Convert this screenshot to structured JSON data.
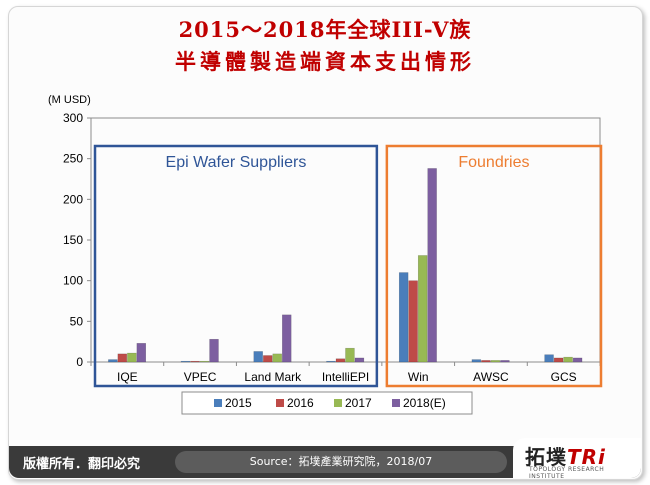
{
  "title": {
    "line1": "2015～2018年全球III-V族",
    "line2": "半導體製造端資本支出情形"
  },
  "footer": {
    "left_text": "版權所有．翻印必究",
    "source": "Source：拓墣產業研究院，2018/07",
    "logo_text": "拓墣",
    "logo_tri": "TRi",
    "logo_sub": "TOPOLOGY RESEARCH INSTITUTE"
  },
  "chart_data": {
    "type": "bar",
    "ylabel": "(M USD)",
    "ylim": [
      0,
      300
    ],
    "yticks": [
      0,
      50,
      100,
      150,
      200,
      250,
      300
    ],
    "categories": [
      "IQE",
      "VPEC",
      "Land Mark",
      "IntelliEPI",
      "Win",
      "AWSC",
      "GCS"
    ],
    "series": [
      {
        "name": "2015",
        "color": "#4a7ebb",
        "values": [
          3,
          1,
          13,
          1,
          110,
          3,
          9
        ]
      },
      {
        "name": "2016",
        "color": "#be4b48",
        "values": [
          10,
          1,
          8,
          4,
          100,
          2,
          5
        ]
      },
      {
        "name": "2017",
        "color": "#98b954",
        "values": [
          11,
          1,
          10,
          17,
          131,
          2,
          6
        ]
      },
      {
        "name": "2018(E)",
        "color": "#7d5fa0",
        "values": [
          23,
          28,
          58,
          5,
          238,
          2,
          5
        ]
      }
    ],
    "groups": [
      {
        "label": "Epi Wafer Suppliers",
        "color": "#2f5597",
        "categories": [
          "IQE",
          "VPEC",
          "Land Mark",
          "IntelliEPI"
        ]
      },
      {
        "label": "Foundries",
        "color": "#ed7d31",
        "categories": [
          "Win",
          "AWSC",
          "GCS"
        ]
      }
    ],
    "grid": false,
    "legend": "bottom"
  }
}
